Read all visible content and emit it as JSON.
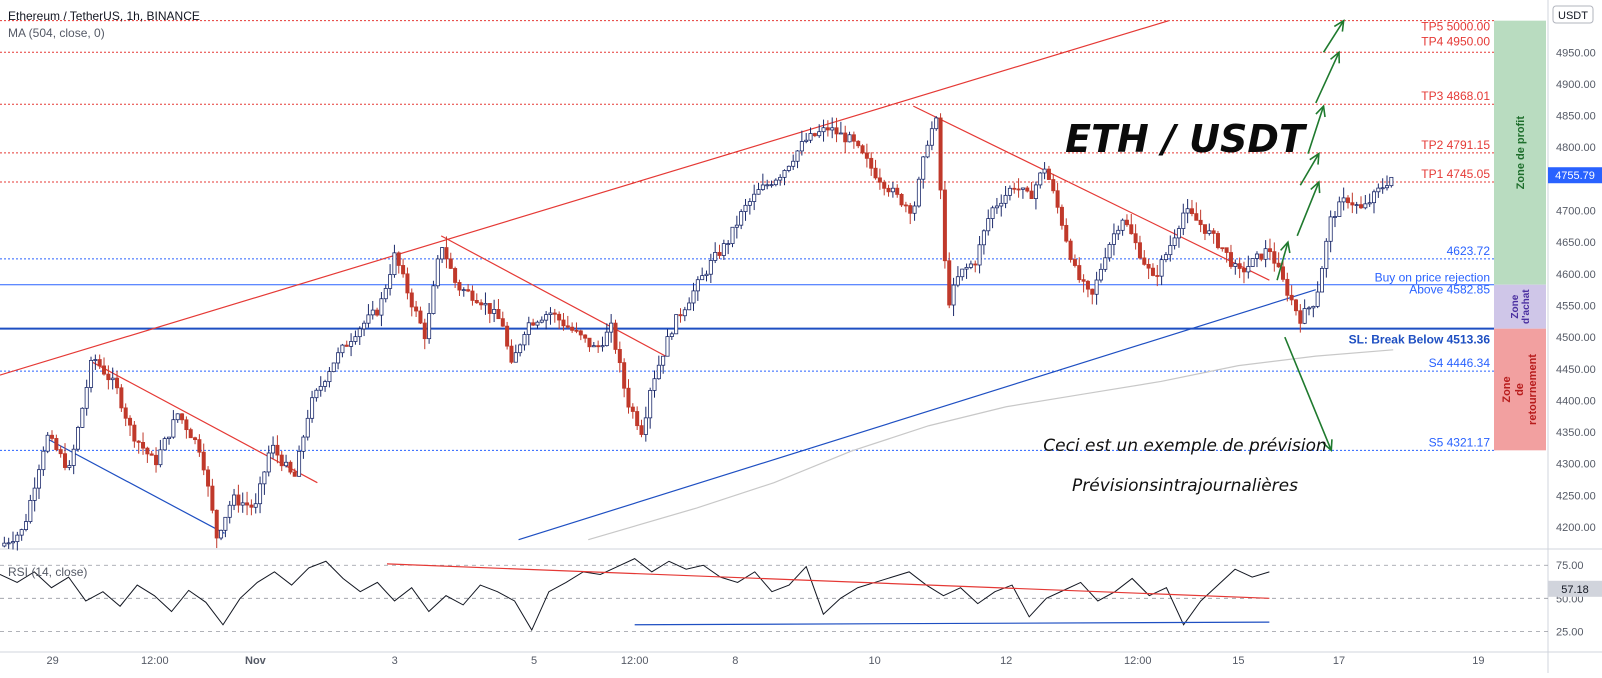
{
  "header": {
    "symbol_line": "Ethereum / TetherUS, 1h, BINANCE",
    "ma_line": "MA (504, close, 0)",
    "rsi_line": "RSI (14, close)",
    "currency_badge": "USDT"
  },
  "annotations": {
    "big_title": "ETH / USDT",
    "forecast_note": "Ceci est un exemple de prévision",
    "forecast_note2": "Prévisionsintrajournalières",
    "zone_profit": "Zone de profit",
    "zone_buy_l1": "Zone",
    "zone_buy_l2": "d'achat",
    "zone_rev_l1": "Zone",
    "zone_rev_l2": "de",
    "zone_rev_l3": "retournement"
  },
  "colors": {
    "candle_up": "#1c2a6b",
    "candle_down": "#c0392b",
    "resistance": "#e53935",
    "support": "#1e4fc2",
    "target_arrow": "#1f7a2e",
    "zone_profit": "#b9dcc0",
    "zone_buy": "#cfc6e8",
    "zone_rev": "#f2a0a0",
    "price_badge": "#2962ff"
  },
  "chart_data": [
    {
      "type": "candlestick",
      "title": "Ethereum / TetherUS, 1h, BINANCE",
      "ylim": [
        4170,
        5020
      ],
      "y_ticks": [
        4200,
        4250,
        4300,
        4350,
        4400,
        4450,
        4500,
        4550,
        4600,
        4650,
        4700,
        4750,
        4800,
        4850,
        4900,
        4950
      ],
      "y_tick_labels": [
        "4200.00",
        "4250.00",
        "4300.00",
        "4350.00",
        "4400.00",
        "4450.00",
        "4500.00",
        "4550.00",
        "4600.00",
        "4650.00",
        "4700.00",
        "4750.00",
        "4800.00",
        "4850.00",
        "4900.00",
        "4950.00"
      ],
      "x_tick_labels": [
        "29",
        "12:00",
        "Nov",
        "3",
        "5",
        "12:00",
        "8",
        "10",
        "12",
        "12:00",
        "15",
        "17",
        "19"
      ],
      "last_price": 4755.79,
      "last_price_label": "4755.79",
      "price_path": [
        [
          0,
          4170
        ],
        [
          0.015,
          4195
        ],
        [
          0.03,
          4345
        ],
        [
          0.045,
          4290
        ],
        [
          0.06,
          4470
        ],
        [
          0.075,
          4420
        ],
        [
          0.085,
          4350
        ],
        [
          0.1,
          4300
        ],
        [
          0.115,
          4380
        ],
        [
          0.13,
          4320
        ],
        [
          0.14,
          4185
        ],
        [
          0.15,
          4245
        ],
        [
          0.165,
          4230
        ],
        [
          0.175,
          4330
        ],
        [
          0.19,
          4275
        ],
        [
          0.2,
          4390
        ],
        [
          0.215,
          4460
        ],
        [
          0.23,
          4510
        ],
        [
          0.245,
          4545
        ],
        [
          0.255,
          4630
        ],
        [
          0.265,
          4560
        ],
        [
          0.275,
          4500
        ],
        [
          0.285,
          4650
        ],
        [
          0.295,
          4580
        ],
        [
          0.31,
          4560
        ],
        [
          0.325,
          4520
        ],
        [
          0.33,
          4450
        ],
        [
          0.34,
          4520
        ],
        [
          0.355,
          4540
        ],
        [
          0.37,
          4510
        ],
        [
          0.385,
          4480
        ],
        [
          0.395,
          4515
        ],
        [
          0.405,
          4400
        ],
        [
          0.415,
          4350
        ],
        [
          0.42,
          4420
        ],
        [
          0.435,
          4520
        ],
        [
          0.445,
          4560
        ],
        [
          0.46,
          4620
        ],
        [
          0.47,
          4650
        ],
        [
          0.48,
          4700
        ],
        [
          0.49,
          4730
        ],
        [
          0.505,
          4760
        ],
        [
          0.52,
          4810
        ],
        [
          0.535,
          4830
        ],
        [
          0.55,
          4810
        ],
        [
          0.565,
          4760
        ],
        [
          0.58,
          4720
        ],
        [
          0.59,
          4700
        ],
        [
          0.6,
          4820
        ],
        [
          0.605,
          4840
        ],
        [
          0.612,
          4550
        ],
        [
          0.62,
          4600
        ],
        [
          0.63,
          4620
        ],
        [
          0.64,
          4700
        ],
        [
          0.655,
          4740
        ],
        [
          0.665,
          4720
        ],
        [
          0.675,
          4770
        ],
        [
          0.685,
          4690
        ],
        [
          0.695,
          4600
        ],
        [
          0.705,
          4560
        ],
        [
          0.715,
          4640
        ],
        [
          0.725,
          4690
        ],
        [
          0.735,
          4640
        ],
        [
          0.745,
          4590
        ],
        [
          0.755,
          4640
        ],
        [
          0.765,
          4700
        ],
        [
          0.775,
          4680
        ],
        [
          0.79,
          4640
        ],
        [
          0.8,
          4600
        ],
        [
          0.81,
          4620
        ],
        [
          0.82,
          4640
        ],
        [
          0.83,
          4580
        ],
        [
          0.84,
          4530
        ],
        [
          0.85,
          4560
        ],
        [
          0.86,
          4690
        ],
        [
          0.87,
          4720
        ],
        [
          0.88,
          4700
        ],
        [
          0.89,
          4730
        ],
        [
          0.9,
          4755.79
        ]
      ],
      "moving_average": {
        "name": "MA (504, close, 0)",
        "points": [
          [
            0.38,
            4180
          ],
          [
            0.45,
            4230
          ],
          [
            0.5,
            4270
          ],
          [
            0.55,
            4320
          ],
          [
            0.6,
            4360
          ],
          [
            0.65,
            4390
          ],
          [
            0.7,
            4410
          ],
          [
            0.75,
            4430
          ],
          [
            0.8,
            4455
          ],
          [
            0.85,
            4470
          ],
          [
            0.9,
            4480
          ]
        ]
      },
      "levels": [
        {
          "label": "TP5 5000.00",
          "value": 5000.0,
          "color": "#e53935"
        },
        {
          "label": "TP4 4950.00",
          "value": 4950.0,
          "color": "#e53935"
        },
        {
          "label": "TP3 4868.01",
          "value": 4868.01,
          "color": "#e53935"
        },
        {
          "label": "TP2 4791.15",
          "value": 4791.15,
          "color": "#e53935"
        },
        {
          "label": "TP1 4745.05",
          "value": 4745.05,
          "color": "#e53935"
        },
        {
          "label": "4623.72",
          "value": 4623.72,
          "color": "#2962ff"
        },
        {
          "label": "Buy on price rejection",
          "value": 4582.85,
          "color": "#2962ff"
        },
        {
          "label": "Above 4582.85",
          "value": 4582.85,
          "color": "#2962ff"
        },
        {
          "label": "SL: Break Below 4513.36",
          "value": 4513.36,
          "color": "#1e4fc2"
        },
        {
          "label": "S4 4446.34",
          "value": 4446.34,
          "color": "#2962ff"
        },
        {
          "label": "S5 4321.17",
          "value": 4321.17,
          "color": "#2962ff"
        }
      ],
      "zones": [
        {
          "name": "Zone de profit",
          "from": 4582.85,
          "to": 5000.0
        },
        {
          "name": "Zone d'achat",
          "from": 4513.36,
          "to": 4582.85
        },
        {
          "name": "Zone de retournement",
          "from": 4321.17,
          "to": 4513.36
        }
      ],
      "trendlines": [
        {
          "kind": "resistance",
          "from": [
            0.0,
            4440
          ],
          "to": [
            0.755,
            5000
          ]
        },
        {
          "kind": "support",
          "from": [
            0.335,
            4180
          ],
          "to": [
            0.85,
            4575
          ]
        },
        {
          "kind": "resistance",
          "from": [
            0.06,
            4460
          ],
          "to": [
            0.205,
            4270
          ]
        },
        {
          "kind": "support",
          "from": [
            0.03,
            4340
          ],
          "to": [
            0.145,
            4190
          ]
        },
        {
          "kind": "resistance",
          "from": [
            0.285,
            4660
          ],
          "to": [
            0.43,
            4470
          ]
        },
        {
          "kind": "resistance",
          "from": [
            0.59,
            4865
          ],
          "to": [
            0.82,
            4590
          ]
        }
      ],
      "forecast_arrows_up": [
        [
          [
            0.825,
            4590
          ],
          [
            0.832,
            4650
          ]
        ],
        [
          [
            0.838,
            4660
          ],
          [
            0.852,
            4745
          ]
        ],
        [
          [
            0.84,
            4740
          ],
          [
            0.852,
            4790
          ]
        ],
        [
          [
            0.845,
            4790
          ],
          [
            0.855,
            4865
          ]
        ],
        [
          [
            0.85,
            4870
          ],
          [
            0.865,
            4950
          ]
        ],
        [
          [
            0.855,
            4950
          ],
          [
            0.868,
            5000
          ]
        ]
      ],
      "forecast_arrow_down": [
        [
          0.83,
          4500
        ],
        [
          0.86,
          4321.17
        ]
      ]
    },
    {
      "type": "line",
      "title": "RSI (14, close)",
      "ylim": [
        20,
        85
      ],
      "y_ticks": [
        25,
        50,
        75
      ],
      "y_tick_labels": [
        "25.00",
        "50.00",
        "75.00"
      ],
      "last_value": 57.18,
      "last_value_label": "57.18",
      "values": [
        68,
        62,
        70,
        58,
        66,
        48,
        55,
        44,
        60,
        52,
        40,
        56,
        47,
        30,
        50,
        62,
        70,
        60,
        73,
        78,
        65,
        55,
        62,
        48,
        58,
        40,
        52,
        45,
        60,
        55,
        48,
        26,
        55,
        62,
        70,
        68,
        74,
        80,
        70,
        78,
        72,
        75,
        66,
        62,
        70,
        55,
        60,
        74,
        38,
        50,
        58,
        62,
        66,
        70,
        60,
        52,
        58,
        46,
        55,
        60,
        36,
        50,
        56,
        62,
        48,
        55,
        65,
        52,
        58,
        30,
        48,
        60,
        72,
        66,
        70
      ],
      "trendlines": [
        {
          "kind": "resistance",
          "from": [
            0.25,
            76
          ],
          "to": [
            0.82,
            50
          ]
        },
        {
          "kind": "support",
          "from": [
            0.41,
            30
          ],
          "to": [
            0.82,
            32
          ]
        }
      ]
    }
  ]
}
